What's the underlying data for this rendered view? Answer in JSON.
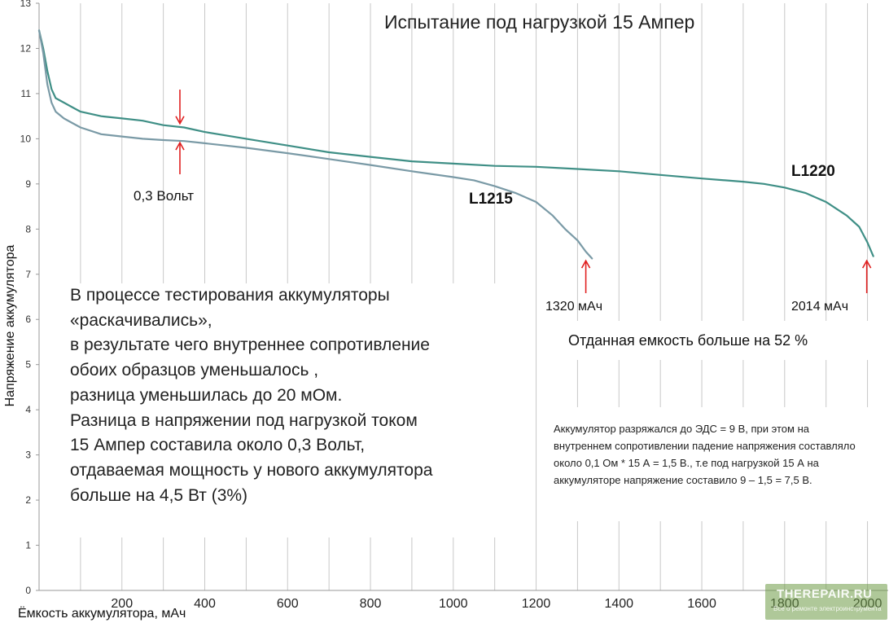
{
  "chart_data": {
    "type": "line",
    "title": "Испытание под нагрузкой 15 Ампер",
    "xlabel": "Ёмкость аккумулятора, мАч",
    "ylabel": "Напряжение аккумулятора",
    "xlim": [
      0,
      2050
    ],
    "ylim": [
      0,
      13
    ],
    "x_ticks": [
      200,
      400,
      600,
      800,
      1000,
      1200,
      1400,
      1600,
      1800,
      2000
    ],
    "y_ticks": [
      0,
      1,
      2,
      3,
      4,
      5,
      6,
      7,
      8,
      9,
      10,
      11,
      12,
      13
    ],
    "grid": "vertical",
    "series": [
      {
        "name": "L1220",
        "color": "#3f8f86",
        "x": [
          0,
          10,
          20,
          30,
          40,
          60,
          80,
          100,
          150,
          200,
          250,
          300,
          350,
          400,
          500,
          600,
          700,
          800,
          900,
          1000,
          1100,
          1200,
          1300,
          1400,
          1500,
          1600,
          1700,
          1750,
          1800,
          1850,
          1900,
          1950,
          1980,
          2000,
          2014
        ],
        "y": [
          12.4,
          12.0,
          11.5,
          11.1,
          10.9,
          10.8,
          10.7,
          10.6,
          10.5,
          10.45,
          10.4,
          10.3,
          10.25,
          10.15,
          10.0,
          9.85,
          9.7,
          9.6,
          9.5,
          9.45,
          9.4,
          9.38,
          9.33,
          9.28,
          9.2,
          9.12,
          9.05,
          9.0,
          8.92,
          8.8,
          8.6,
          8.3,
          8.05,
          7.7,
          7.4
        ]
      },
      {
        "name": "L1215",
        "color": "#7a9aa6",
        "x": [
          0,
          10,
          20,
          30,
          40,
          60,
          80,
          100,
          150,
          200,
          250,
          300,
          350,
          400,
          500,
          600,
          700,
          800,
          900,
          1000,
          1050,
          1100,
          1150,
          1200,
          1240,
          1270,
          1300,
          1320,
          1335
        ],
        "y": [
          12.4,
          11.9,
          11.2,
          10.8,
          10.6,
          10.45,
          10.35,
          10.25,
          10.1,
          10.05,
          10.0,
          9.97,
          9.95,
          9.9,
          9.8,
          9.68,
          9.55,
          9.42,
          9.28,
          9.15,
          9.08,
          8.95,
          8.8,
          8.6,
          8.3,
          8.0,
          7.75,
          7.5,
          7.35
        ]
      }
    ],
    "annotations": {
      "diff_label": "0,3 Вольт",
      "cap_1215": "1320 мАч",
      "cap_1220": "2014 мАч",
      "label_1215": "L1215",
      "label_1220": "L1220",
      "capacity_more": "Отданная емкость больше на 52 %"
    }
  },
  "text_box": {
    "lines": [
      "В процессе тестирования аккумуляторы",
      "«раскачивались»,",
      "в результате чего внутреннее сопротивление",
      "обоих образцов уменьшалось ,",
      "разница уменьшилась до 20 мОм.",
      "Разница в напряжении под нагрузкой током",
      "15 Ампер составила около 0,3 Вольт,",
      "отдаваемая мощность у нового аккумулятора",
      "больше на 4,5 Вт (3%)"
    ]
  },
  "note_box": {
    "text": "Аккумулятор разряжался до ЭДС = 9 В, при этом на внутреннем сопротивлении падение напряжения составляло около 0,1 Ом * 15 А = 1,5 В., т.е под нагрузкой 15 А на аккумуляторе напряжение составило 9 – 1,5 = 7,5 В."
  },
  "watermark": {
    "main": "THEREPAIR.RU",
    "sub": "Все о ремонте электроинструмента"
  },
  "colors": {
    "arrow": "#e02020",
    "series_1220": "#3f8f86",
    "series_1215": "#7a9aa6",
    "grid": "#c8c8c8"
  }
}
